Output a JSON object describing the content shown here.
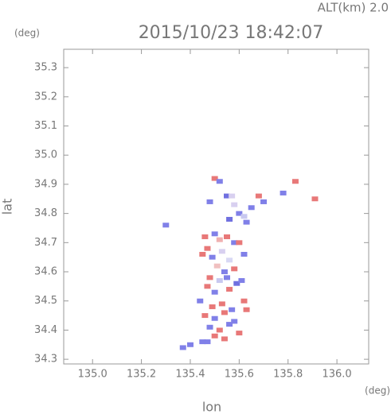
{
  "chart_data": {
    "type": "scatter",
    "title": "2015/10/23 18:42:07",
    "subtitle": "ALT(km) 2.0",
    "y_unit": "(deg)",
    "x_unit": "(deg)",
    "xlabel": "lon",
    "ylabel": "lat",
    "xlim": [
      134.882,
      136.13
    ],
    "ylim": [
      34.284,
      35.363
    ],
    "xticks": [
      {
        "value": 135.0,
        "label": "135.0"
      },
      135.2,
      135.4,
      135.6,
      135.8,
      {
        "value": 136.0,
        "label": "136.0"
      }
    ],
    "yticks": [
      34.3,
      34.4,
      34.5,
      34.6,
      34.7,
      34.8,
      34.9,
      {
        "value": 35.0,
        "label": "35.0"
      },
      35.1,
      35.2,
      35.3
    ],
    "x": [
      135.5,
      135.52,
      135.55,
      135.48,
      135.57,
      135.6,
      135.62,
      135.65,
      135.68,
      135.56,
      135.58,
      135.63,
      135.7,
      135.78,
      135.83,
      135.91,
      135.3,
      135.46,
      135.5,
      135.52,
      135.55,
      135.58,
      135.47,
      135.53,
      135.6,
      135.49,
      135.56,
      135.62,
      135.45,
      135.51,
      135.54,
      135.58,
      135.48,
      135.52,
      135.55,
      135.59,
      135.47,
      135.5,
      135.56,
      135.61,
      135.44,
      135.49,
      135.53,
      135.57,
      135.62,
      135.46,
      135.5,
      135.54,
      135.58,
      135.63,
      135.48,
      135.52,
      135.56,
      135.6,
      135.5,
      135.54,
      135.47,
      135.4,
      135.45,
      135.37
    ],
    "values": [
      34.92,
      34.91,
      34.86,
      34.84,
      34.86,
      34.8,
      34.79,
      34.82,
      34.86,
      34.78,
      34.83,
      34.77,
      34.84,
      34.87,
      34.91,
      34.85,
      34.76,
      34.72,
      34.73,
      34.71,
      34.72,
      34.7,
      34.68,
      34.67,
      34.7,
      34.65,
      34.64,
      34.66,
      34.66,
      34.62,
      34.6,
      34.61,
      34.58,
      34.57,
      34.58,
      34.56,
      34.55,
      34.53,
      34.54,
      34.57,
      34.5,
      34.48,
      34.49,
      34.47,
      34.5,
      34.45,
      34.44,
      34.46,
      34.43,
      34.47,
      34.41,
      34.4,
      34.42,
      34.39,
      34.38,
      34.37,
      34.36,
      34.35,
      34.36,
      34.34
    ],
    "colors": [
      "#e87878",
      "#8080e8",
      "#7070e0",
      "#8080e8",
      "#d8d0f0",
      "#8080e8",
      "#c8c8f0",
      "#8080e8",
      "#e87878",
      "#7070e0",
      "#d8d0f0",
      "#8080e8",
      "#8080e8",
      "#8080e8",
      "#e87878",
      "#e87878",
      "#8080e8",
      "#e87878",
      "#8080e8",
      "#f0b0b0",
      "#e87878",
      "#8080e8",
      "#e87878",
      "#d8d0f0",
      "#e87878",
      "#8080e8",
      "#d8d8f4",
      "#8080e8",
      "#e87878",
      "#f0c0c0",
      "#8080e8",
      "#e87878",
      "#e87878",
      "#c8c8f0",
      "#8080e8",
      "#7070e0",
      "#e87878",
      "#8080e8",
      "#e87878",
      "#8080e8",
      "#8080e8",
      "#e87878",
      "#e87878",
      "#8080e8",
      "#e87878",
      "#e87878",
      "#8080e8",
      "#e87878",
      "#8080e8",
      "#e87878",
      "#8080e8",
      "#e87878",
      "#8080e8",
      "#e87878",
      "#e87878",
      "#e87878",
      "#8080e8",
      "#8080e8",
      "#8080e8",
      "#8080e8"
    ]
  }
}
